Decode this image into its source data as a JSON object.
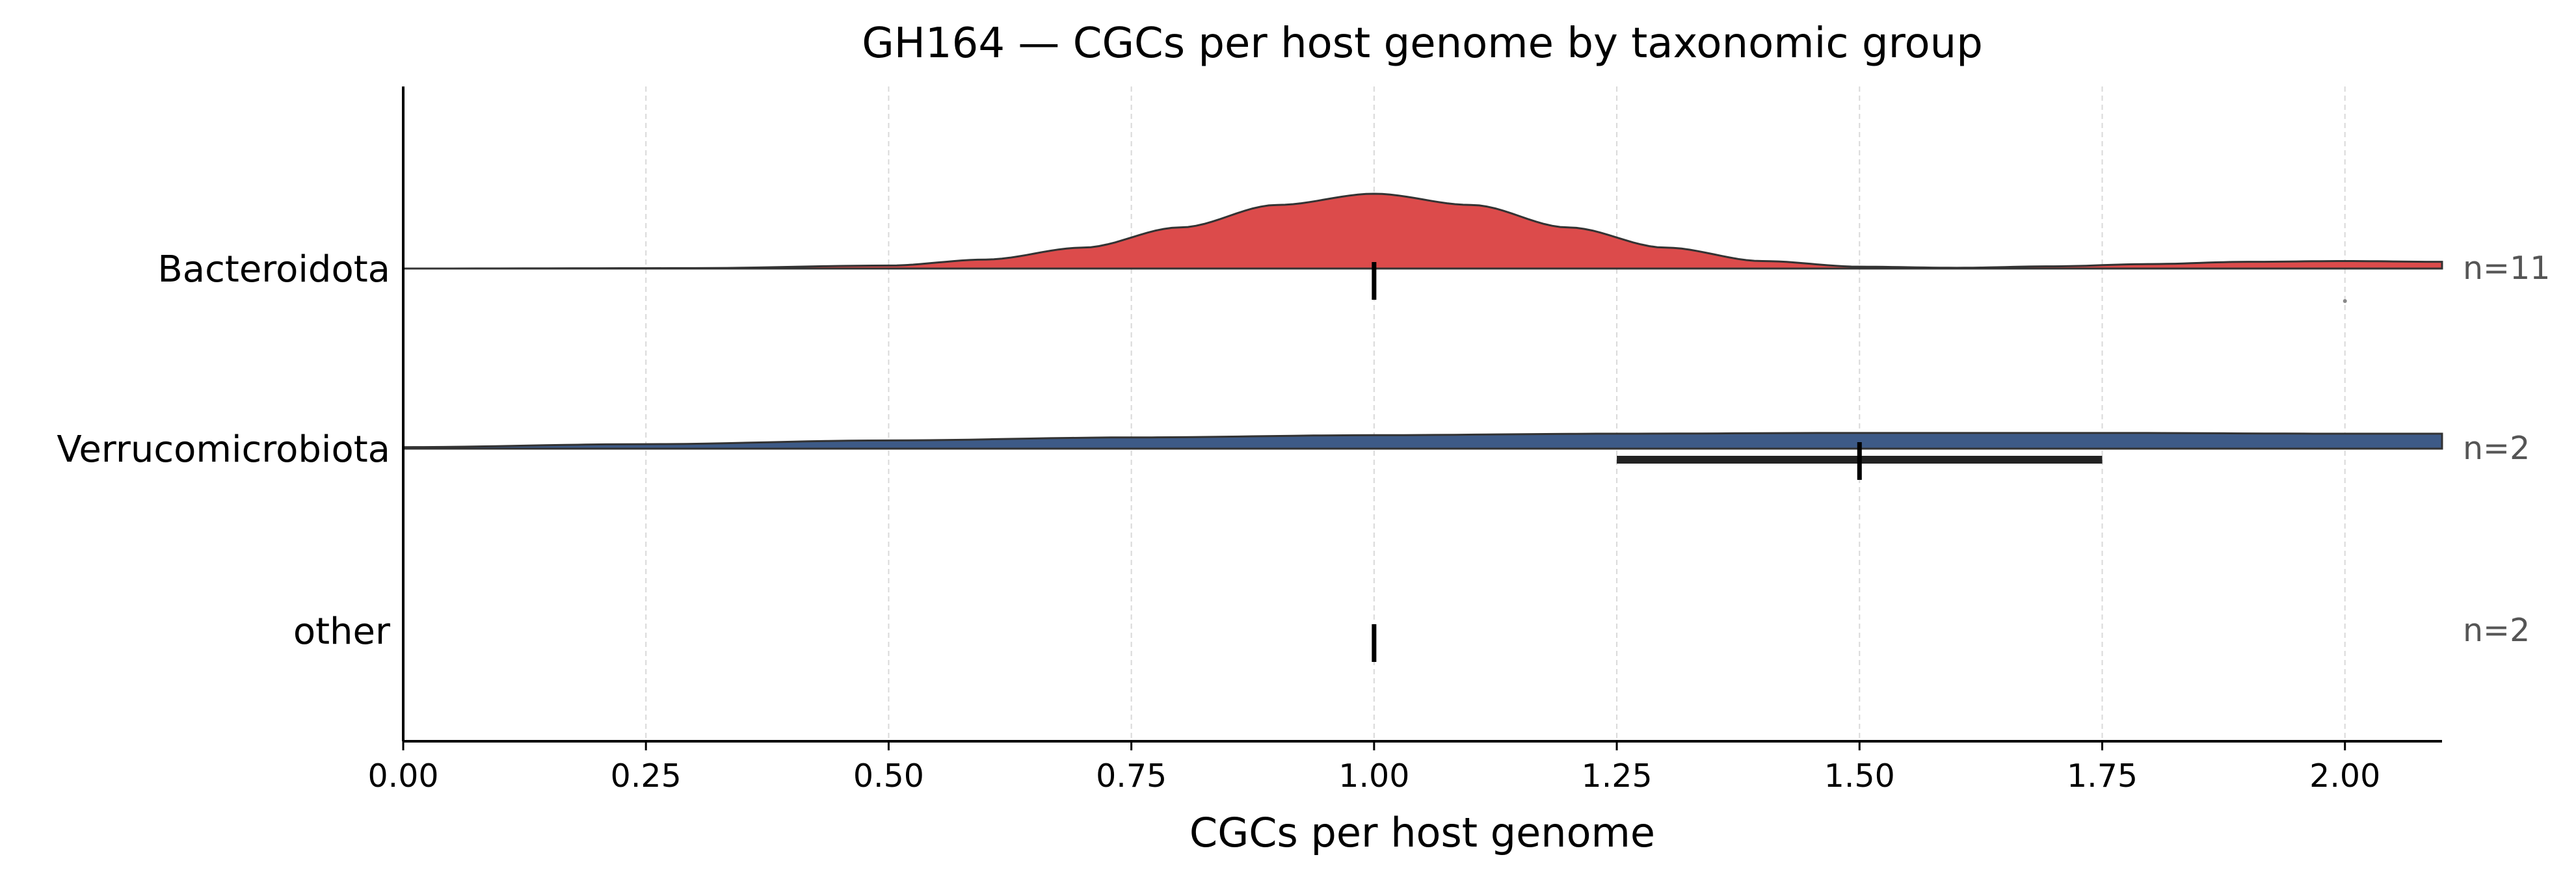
{
  "chart_data": {
    "type": "ridgeline",
    "title": "GH164 — CGCs per host genome by taxonomic group",
    "xlabel": "CGCs per host genome",
    "ylabel": "",
    "xlim": [
      0,
      2.1
    ],
    "xticks": [
      "0.00",
      "0.25",
      "0.50",
      "0.75",
      "1.00",
      "1.25",
      "1.50",
      "1.75",
      "2.00"
    ],
    "grid": "x",
    "groups": [
      {
        "name": "Bacteroidota",
        "n_label": "n=11",
        "color": "#dc4b4b",
        "median": 1.0,
        "iqr": [
          1.0,
          1.0
        ],
        "outliers": [
          2.0
        ],
        "density": {
          "x": [
            0.0,
            0.3,
            0.5,
            0.6,
            0.7,
            0.8,
            0.9,
            1.0,
            1.1,
            1.2,
            1.3,
            1.4,
            1.5,
            1.6,
            1.7,
            1.8,
            1.9,
            2.0,
            2.1
          ],
          "y": [
            0.0,
            0.005,
            0.04,
            0.12,
            0.28,
            0.55,
            0.85,
            1.0,
            0.85,
            0.55,
            0.28,
            0.1,
            0.025,
            0.01,
            0.03,
            0.06,
            0.09,
            0.1,
            0.09
          ]
        }
      },
      {
        "name": "Verrucomicrobiota",
        "n_label": "n=2",
        "color": "#3d5a87",
        "median": 1.5,
        "iqr": [
          1.25,
          1.75
        ],
        "outliers": [],
        "density": {
          "x": [
            0.0,
            0.25,
            0.5,
            0.75,
            1.0,
            1.25,
            1.5,
            1.75,
            2.0,
            2.1
          ],
          "y": [
            0.02,
            0.06,
            0.11,
            0.15,
            0.18,
            0.2,
            0.21,
            0.21,
            0.2,
            0.2
          ]
        }
      },
      {
        "name": "other",
        "n_label": "n=2",
        "color": "#888888",
        "median": 1.0,
        "iqr": [
          1.0,
          1.0
        ],
        "outliers": [],
        "density": null
      }
    ]
  }
}
